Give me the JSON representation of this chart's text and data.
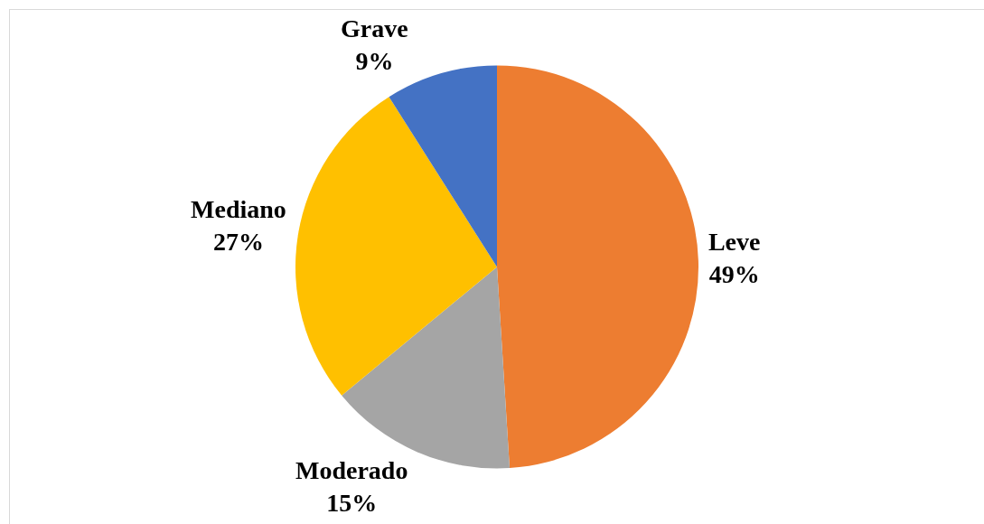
{
  "chart_data": {
    "type": "pie",
    "categories": [
      "Leve",
      "Moderado",
      "Mediano",
      "Grave"
    ],
    "values": [
      49,
      15,
      27,
      9
    ],
    "value_labels": [
      "49%",
      "15%",
      "27%",
      "9%"
    ],
    "colors": [
      "#ed7d31",
      "#a5a5a5",
      "#ffc000",
      "#4472c4"
    ]
  }
}
